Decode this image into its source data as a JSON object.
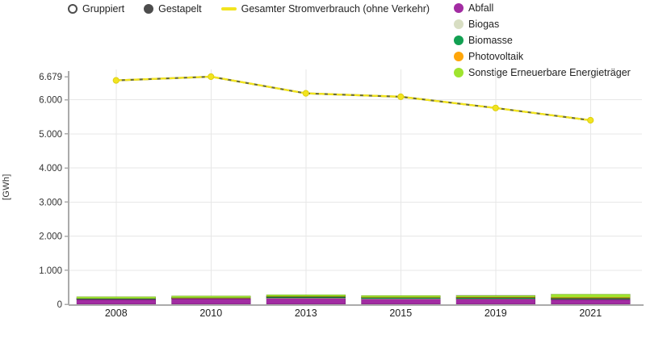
{
  "controls": {
    "grouped_label": "Gruppiert",
    "stacked_label": "Gestapelt",
    "selected": "Gestapelt",
    "line_legend_label": "Gesamter Stromverbrauch (ohne Verkehr)"
  },
  "legend": {
    "items": [
      {
        "label": "Abfall",
        "color": "#A22CA2"
      },
      {
        "label": "Biogas",
        "color": "#D8DEC3"
      },
      {
        "label": "Biomasse",
        "color": "#12A052"
      },
      {
        "label": "Photovoltaik",
        "color": "#FFA60A"
      },
      {
        "label": "Sonstige Erneuerbare Energieträger",
        "color": "#9FE42F"
      }
    ]
  },
  "colors": {
    "line": "#F2E41F",
    "line_dash_dark": "#6E6E2E",
    "grid": "#E7E7E7",
    "axis": "#ABABAB",
    "tick_text": "#333333"
  },
  "chart_data": {
    "type": "bar",
    "stacked": true,
    "grid": true,
    "legend_position": "top-right",
    "ylabel": "[GWh]",
    "xlabel": "",
    "ylim": [
      0,
      6679
    ],
    "y_ticks": [
      0,
      1000,
      2000,
      3000,
      4000,
      5000,
      6000,
      6679
    ],
    "y_tick_labels": [
      "0",
      "1.000",
      "2.000",
      "3.000",
      "4.000",
      "5.000",
      "6.000",
      "6.679"
    ],
    "categories": [
      "2008",
      "2010",
      "2013",
      "2015",
      "2019",
      "2021"
    ],
    "series": [
      {
        "name": "Abfall",
        "color": "#A22CA2",
        "values": [
          140,
          165,
          170,
          150,
          155,
          140
        ]
      },
      {
        "name": "Biogas",
        "color": "#D8DEC3",
        "values": [
          15,
          15,
          20,
          20,
          15,
          15
        ]
      },
      {
        "name": "Biomasse",
        "color": "#12A052",
        "values": [
          10,
          10,
          25,
          25,
          25,
          25
        ]
      },
      {
        "name": "Photovoltaik",
        "color": "#FFA60A",
        "values": [
          0,
          5,
          10,
          10,
          15,
          25
        ]
      },
      {
        "name": "Sonstige Erneuerbare Energieträger",
        "color": "#9FE42F",
        "values": [
          55,
          50,
          55,
          50,
          50,
          95
        ]
      }
    ],
    "line_series": {
      "name": "Gesamter Stromverbrauch (ohne Verkehr)",
      "color": "#F2E41F",
      "values": [
        6570,
        6679,
        6190,
        6090,
        5760,
        5400
      ]
    }
  }
}
